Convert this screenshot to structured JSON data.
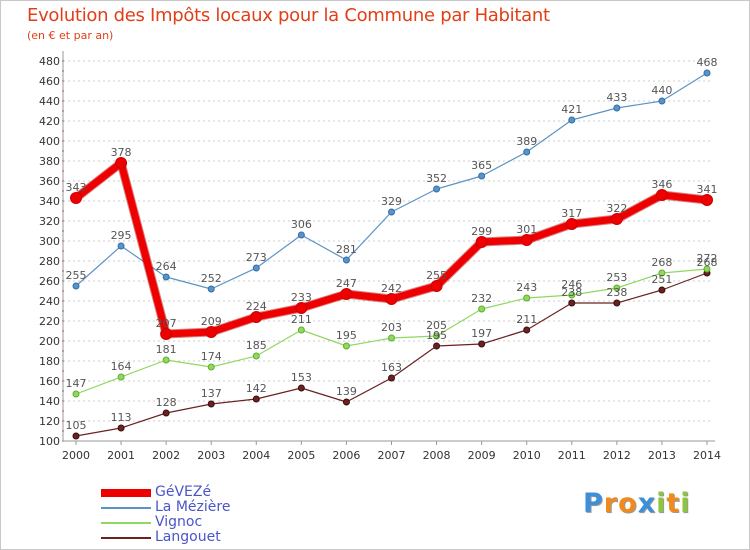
{
  "chart_data": {
    "type": "line",
    "title": "Evolution des Impôts locaux pour la Commune par Habitant",
    "subtitle": "(en € et par an)",
    "xlabel": "",
    "ylabel": "",
    "x": [
      "2000",
      "2001",
      "2002",
      "2003",
      "2004",
      "2005",
      "2006",
      "2007",
      "2008",
      "2009",
      "2010",
      "2011",
      "2012",
      "2013",
      "2014"
    ],
    "ylim": [
      100,
      480
    ],
    "yticks": [
      100,
      120,
      140,
      160,
      180,
      200,
      220,
      240,
      260,
      280,
      300,
      320,
      340,
      360,
      380,
      400,
      420,
      440,
      460,
      480
    ],
    "grid": "horizontal dashed",
    "legend_position": "bottom-left",
    "series": [
      {
        "name": "GéVEZé",
        "color": "#ee0000",
        "values": [
          343,
          378,
          207,
          209,
          224,
          233,
          247,
          242,
          255,
          299,
          301,
          317,
          322,
          346,
          341
        ]
      },
      {
        "name": "La Mézière",
        "color": "#5b93c7",
        "values": [
          255,
          295,
          264,
          252,
          273,
          306,
          281,
          329,
          352,
          365,
          389,
          421,
          433,
          440,
          468
        ]
      },
      {
        "name": "Vignoc",
        "color": "#90d860",
        "values": [
          147,
          164,
          181,
          174,
          185,
          211,
          195,
          203,
          205,
          232,
          243,
          246,
          253,
          268,
          272
        ]
      },
      {
        "name": "Langouet",
        "color": "#6b2222",
        "values": [
          105,
          113,
          128,
          137,
          142,
          153,
          139,
          163,
          195,
          197,
          211,
          238,
          238,
          251,
          268
        ]
      }
    ]
  },
  "logo": {
    "letters": [
      "P",
      "r",
      "o",
      "x",
      "i",
      "t",
      "i"
    ],
    "colors": [
      "#3d8fd8",
      "#f08a1c",
      "#f08a1c",
      "#3d8fd8",
      "#8cc63f",
      "#f08a1c",
      "#8cc63f"
    ]
  }
}
